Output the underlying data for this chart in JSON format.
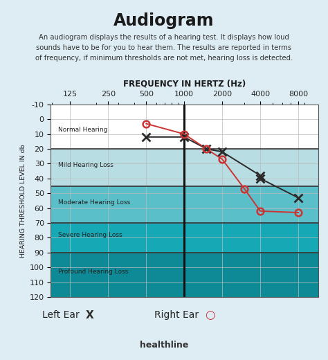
{
  "title": "Audiogram",
  "subtitle": "An audiogram displays the results of a hearing test. It displays how loud\nsounds have to be for you to hear them. The results are reported in terms\nof frequency, if minimum thresholds are not met, hearing loss is detected.",
  "xlabel": "FREQUENCY IN HERTZ (Hz)",
  "ylabel": "HEARING THRESHOLD LEVEL IN db",
  "footer": "healthline",
  "bg_color": "#deedf4",
  "plot_bg_color": "#ffffff",
  "freq_labels": [
    "125",
    "250",
    "500",
    "1000",
    "2000",
    "4000",
    "8000"
  ],
  "freq_positions": [
    125,
    250,
    500,
    1000,
    2000,
    4000,
    8000
  ],
  "ylim": [
    -10,
    120
  ],
  "yticks": [
    -10,
    0,
    10,
    20,
    30,
    40,
    50,
    60,
    70,
    80,
    90,
    100,
    110,
    120
  ],
  "hearing_zones": [
    {
      "label": "Normal Hearing",
      "ymin": -10,
      "ymax": 20,
      "color": "#ffffff"
    },
    {
      "label": "Mild Hearing Loss",
      "ymin": 20,
      "ymax": 45,
      "color": "#b8dde3"
    },
    {
      "label": "Moderate Hearing Loss",
      "ymin": 45,
      "ymax": 70,
      "color": "#5bbfc9"
    },
    {
      "label": "Severe Hearing Loss",
      "ymin": 70,
      "ymax": 90,
      "color": "#17a8b5"
    },
    {
      "label": "Profound Hearing Loss",
      "ymin": 90,
      "ymax": 120,
      "color": "#0e8a96"
    }
  ],
  "zone_label_positions": [
    {
      "label": "Normal Hearing",
      "y": 7
    },
    {
      "label": "Mild Hearing Loss",
      "y": 31
    },
    {
      "label": "Moderate Hearing Loss",
      "y": 56
    },
    {
      "label": "Severe Hearing Loss",
      "y": 78
    },
    {
      "label": "Profound Hearing Loss",
      "y": 103
    }
  ],
  "left_ear_x": [
    500,
    1000,
    1500,
    2000,
    4000,
    4000,
    8000
  ],
  "left_ear_y": [
    12,
    12,
    20,
    22,
    38,
    40,
    53
  ],
  "right_ear_x": [
    500,
    1000,
    1500,
    2000,
    3000,
    4000,
    8000
  ],
  "right_ear_y": [
    3,
    10,
    20,
    27,
    47,
    62,
    63
  ],
  "left_ear_color": "#2a2a2a",
  "right_ear_color": "#cc3333",
  "vertical_line_x": 1000,
  "legend_left": "Left Ear",
  "legend_right": "Right Ear",
  "grid_color": "#bbbbbb",
  "zone_border_color": "#333333"
}
